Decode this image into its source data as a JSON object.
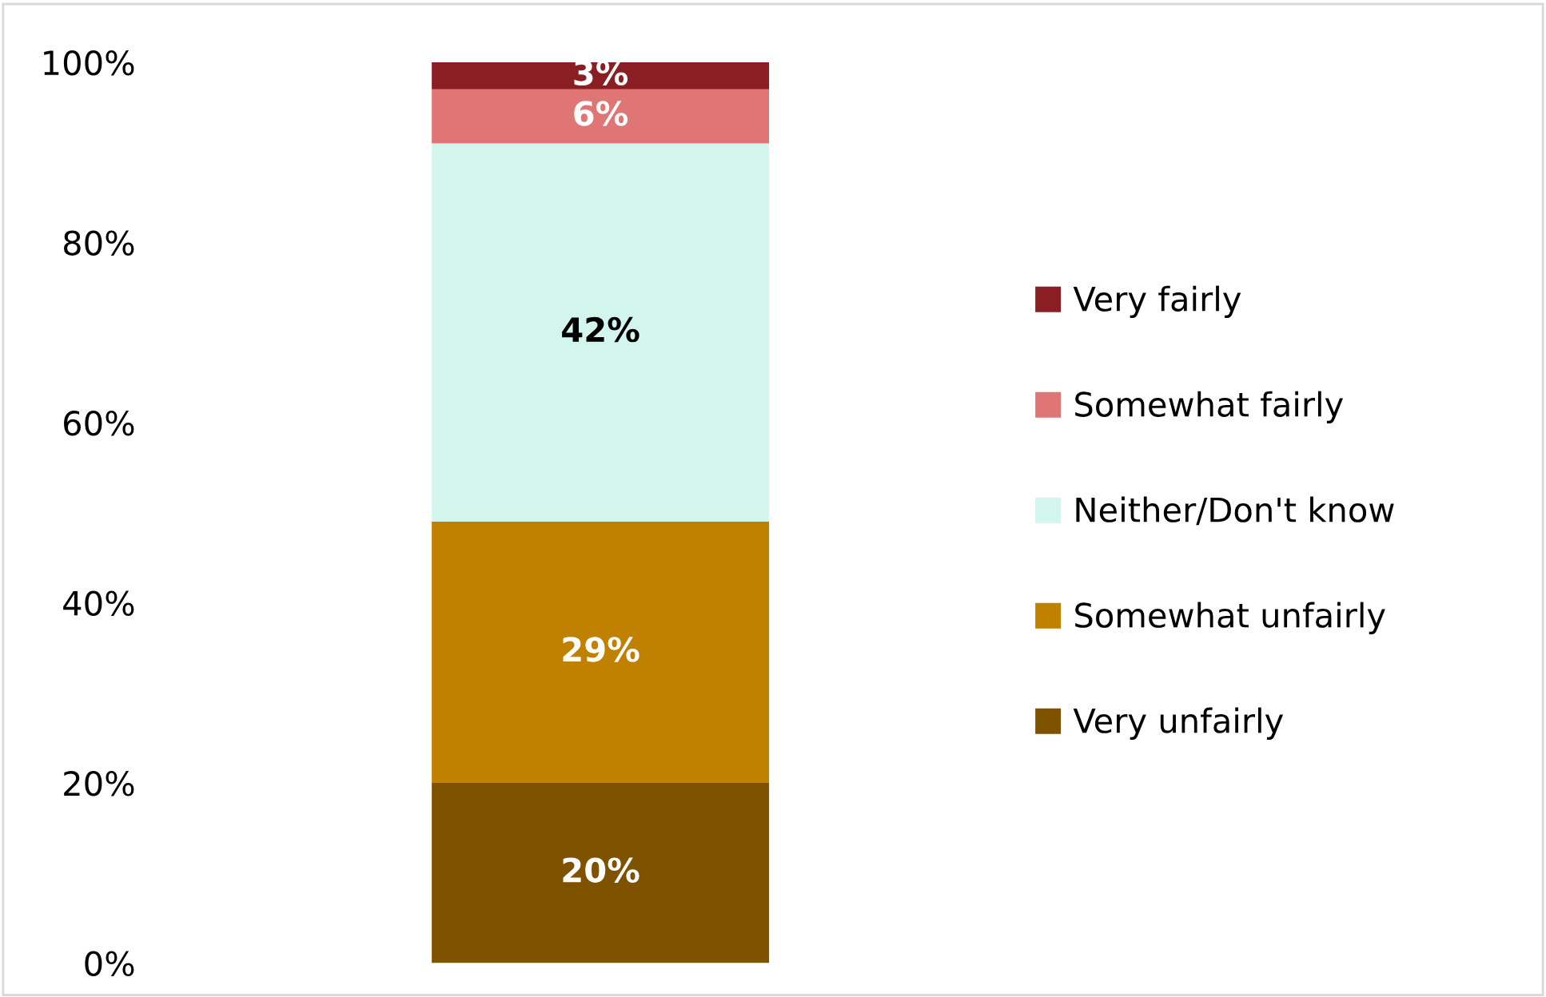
{
  "chart_data": {
    "type": "bar",
    "stacked": true,
    "categories": [
      null
    ],
    "series": [
      {
        "name": "Very unfairly",
        "color": "#7f5200",
        "values": [
          20
        ],
        "value_labels": [
          "20%"
        ]
      },
      {
        "name": "Somewhat unfairly",
        "color": "#c08000",
        "values": [
          29
        ],
        "value_labels": [
          "29%"
        ]
      },
      {
        "name": "Neither/Don't know",
        "color": "#d2f5ec",
        "values": [
          42
        ],
        "value_labels": [
          "42%"
        ]
      },
      {
        "name": "Somewhat fairly",
        "color": "#e07575",
        "values": [
          6
        ],
        "value_labels": [
          "6%"
        ]
      },
      {
        "name": "Very fairly",
        "color": "#8b1e22",
        "values": [
          3
        ],
        "value_labels": [
          "3%"
        ]
      }
    ],
    "ylim": [
      0,
      100
    ],
    "yticks": [
      {
        "value": 0,
        "label": "0%"
      },
      {
        "value": 20,
        "label": "20%"
      },
      {
        "value": 40,
        "label": "40%"
      },
      {
        "value": 60,
        "label": "60%"
      },
      {
        "value": 80,
        "label": "80%"
      },
      {
        "value": 100,
        "label": "100%"
      }
    ],
    "legend": "right",
    "grid": false
  }
}
